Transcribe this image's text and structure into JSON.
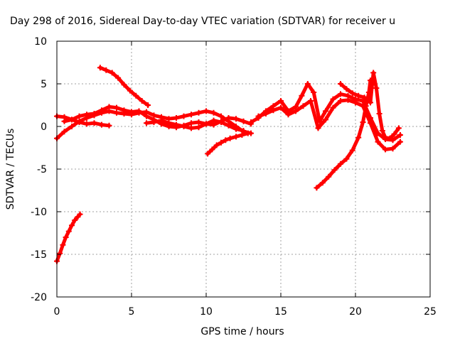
{
  "chart_data": {
    "type": "scatter",
    "title": "Day 298 of 2016, Sidereal Day-to-day VTEC variation (SDTVAR) for receiver u",
    "xlabel": "GPS time / hours",
    "ylabel": "SDTVAR / TECUs",
    "xlim": [
      0,
      25
    ],
    "ylim": [
      -20,
      10
    ],
    "xticks": [
      0,
      5,
      10,
      15,
      20,
      25
    ],
    "yticks": [
      -20,
      -15,
      -10,
      -5,
      0,
      5,
      10
    ],
    "grid": true,
    "legend": "none",
    "colors": {
      "series": "#ff0000",
      "grid": "#a0a0a0",
      "frame": "#000000"
    },
    "marker": "plus",
    "series": [
      {
        "x": [
          0.0,
          0.2,
          0.4,
          0.6,
          0.8,
          1.0,
          1.2,
          1.4,
          1.55
        ],
        "y": [
          -15.8,
          -14.9,
          -13.9,
          -13.0,
          -12.3,
          -11.6,
          -11.0,
          -10.6,
          -10.3
        ]
      },
      {
        "x": [
          0.0,
          0.5,
          1.0,
          1.5,
          2.0,
          2.5,
          3.0,
          3.5,
          4.0,
          4.5,
          5.0,
          5.5,
          6.0,
          6.5,
          7.0,
          7.5,
          8.0,
          8.5,
          9.0,
          9.5,
          10.0,
          10.5,
          11.0,
          11.5,
          12.0,
          12.5,
          13.0
        ],
        "y": [
          -1.4,
          -0.6,
          0.0,
          0.6,
          1.0,
          1.3,
          1.6,
          1.8,
          1.6,
          1.5,
          1.4,
          1.6,
          1.7,
          1.3,
          1.1,
          0.9,
          1.0,
          1.2,
          1.4,
          1.6,
          1.8,
          1.6,
          1.2,
          0.6,
          0.0,
          -0.6,
          -0.8
        ]
      },
      {
        "x": [
          0.0,
          0.5,
          1.0,
          1.5,
          2.0,
          2.5,
          3.0,
          3.5
        ],
        "y": [
          1.2,
          1.1,
          0.8,
          0.5,
          0.3,
          0.4,
          0.2,
          0.1
        ]
      },
      {
        "x": [
          0.5,
          1.0,
          1.5,
          2.0,
          2.5,
          3.0,
          3.5,
          4.0,
          4.5,
          5.0,
          5.5,
          6.0,
          6.5,
          7.0,
          7.5,
          8.0,
          8.5,
          9.0,
          9.5,
          10.0,
          10.5,
          11.0,
          11.5,
          12.0,
          12.5,
          13.0
        ],
        "y": [
          0.6,
          0.8,
          1.2,
          1.4,
          1.5,
          1.9,
          2.3,
          2.2,
          1.9,
          1.7,
          1.8,
          1.2,
          0.8,
          0.3,
          0.0,
          -0.1,
          0.1,
          0.4,
          0.5,
          0.3,
          0.2,
          0.6,
          1.0,
          0.9,
          0.6,
          0.3
        ]
      },
      {
        "x": [
          6.0,
          6.5,
          7.0,
          7.5,
          8.0,
          8.5,
          9.0,
          9.5,
          10.0,
          10.5,
          11.0,
          11.5,
          12.0,
          12.5
        ],
        "y": [
          0.4,
          0.5,
          0.7,
          0.4,
          0.2,
          0.0,
          -0.2,
          -0.1,
          0.3,
          0.7,
          0.5,
          0.1,
          -0.3,
          -0.5
        ]
      },
      {
        "x": [
          2.9,
          3.3,
          3.7,
          4.1,
          4.5,
          4.9,
          5.3,
          5.7,
          6.1
        ],
        "y": [
          6.9,
          6.6,
          6.3,
          5.7,
          4.9,
          4.2,
          3.6,
          3.0,
          2.5
        ]
      },
      {
        "x": [
          10.1,
          10.4,
          10.7,
          11.0,
          11.3,
          11.6,
          12.0,
          12.4,
          12.8
        ],
        "y": [
          -3.2,
          -2.7,
          -2.2,
          -1.9,
          -1.6,
          -1.4,
          -1.2,
          -1.0,
          -0.8
        ]
      },
      {
        "x": [
          13.0,
          13.5,
          14.0,
          14.5,
          15.0,
          15.5,
          16.0,
          16.4,
          16.8,
          17.2,
          17.6,
          18.0,
          18.5,
          19.0,
          19.5,
          20.0,
          20.5,
          21.0,
          21.5,
          22.0,
          22.5,
          23.0
        ],
        "y": [
          0.5,
          1.0,
          1.8,
          2.4,
          3.0,
          1.8,
          2.3,
          3.6,
          5.0,
          4.0,
          0.6,
          1.8,
          3.2,
          3.8,
          3.6,
          3.2,
          3.0,
          1.0,
          -0.8,
          -1.5,
          -1.6,
          -1.0
        ]
      },
      {
        "x": [
          13.5,
          14.0,
          14.5,
          15.0,
          15.5,
          16.0,
          16.5,
          17.0,
          17.5,
          18.0,
          18.5,
          19.0,
          19.5,
          20.0,
          20.5,
          21.0,
          21.5,
          22.0,
          22.5,
          23.0
        ],
        "y": [
          1.2,
          1.5,
          1.9,
          2.2,
          1.4,
          1.8,
          2.4,
          3.0,
          -0.2,
          0.8,
          2.2,
          3.0,
          3.1,
          2.8,
          2.4,
          0.4,
          -1.8,
          -2.7,
          -2.6,
          -1.8
        ]
      },
      {
        "x": [
          17.4,
          17.8,
          18.2,
          18.6,
          19.0,
          19.4,
          19.8,
          20.2,
          20.5,
          20.7,
          20.9,
          21.0
        ],
        "y": [
          -7.2,
          -6.6,
          -5.9,
          -5.1,
          -4.4,
          -3.8,
          -2.8,
          -1.3,
          0.5,
          2.4,
          4.0,
          5.4
        ]
      },
      {
        "x": [
          19.0,
          19.4,
          19.8,
          20.2,
          20.6,
          21.0,
          21.2,
          21.4,
          21.6,
          21.8,
          22.0,
          22.3,
          22.6,
          22.9
        ],
        "y": [
          5.0,
          4.4,
          3.9,
          3.6,
          3.4,
          2.8,
          6.3,
          4.5,
          1.5,
          -0.5,
          -1.3,
          -1.4,
          -0.9,
          -0.2
        ]
      }
    ]
  }
}
